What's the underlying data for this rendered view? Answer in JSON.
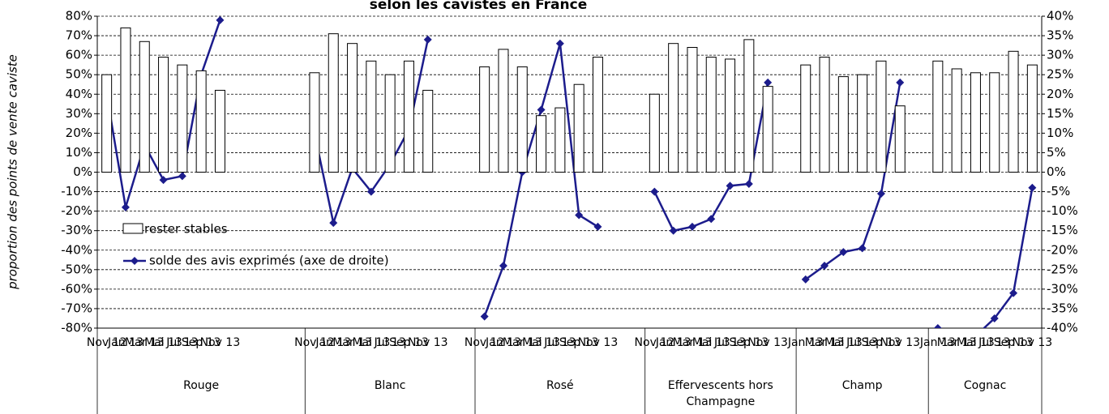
{
  "chart_data": {
    "type": "bar",
    "title": "selon les cavistes en France",
    "y_label": "proportion des points de vente caviste",
    "groups": [
      {
        "name": "Rouge",
        "categories": [
          "Nov 12",
          "Jan 13",
          "Mar 13",
          "Mai 13",
          "Jul 13",
          "Sep 13",
          "Nov 13",
          null,
          null,
          null,
          null
        ]
      },
      {
        "name": "Blanc",
        "categories": [
          "Nov 12",
          "Jan 13",
          "Mar 13",
          "Mai 13",
          "Jul 13",
          "Sep 13",
          "Nov 13",
          null,
          null
        ]
      },
      {
        "name": "Rosé",
        "categories": [
          "Nov 12",
          "Jan 13",
          "Mar 13",
          "Mai 13",
          "Jul 13",
          "Sep 13",
          "Nov 13",
          null,
          null
        ]
      },
      {
        "name": "Effervescents hors Champagne",
        "categories": [
          "Nov 12",
          "Jan 13",
          "Mar 13",
          "Mai 13",
          "Jul 13",
          "Sep 13",
          "Nov 13",
          null
        ]
      },
      {
        "name": "Champ",
        "categories": [
          "Jan 13",
          "Mar 13",
          "Mai 13",
          "Jul 13",
          "Sep 13",
          "Nov 13",
          null
        ]
      },
      {
        "name": "Cognac",
        "categories": [
          "Jan 13",
          "Mar 13",
          "Mai 13",
          "Jul 13",
          "Sep 13",
          "Nov 13"
        ]
      }
    ],
    "series": [
      {
        "name": "rester stables",
        "color": "#ffffff",
        "values": [
          [
            50,
            74,
            67,
            59,
            55,
            52,
            42,
            null,
            null,
            null,
            null
          ],
          [
            51,
            71,
            66,
            57,
            50,
            57,
            42,
            null,
            null
          ],
          [
            54,
            63,
            54,
            29,
            33,
            45,
            59,
            null,
            null
          ],
          [
            40,
            66,
            64,
            59,
            58,
            68,
            44,
            null
          ],
          [
            55,
            59,
            49,
            50,
            57,
            34,
            null
          ],
          [
            57,
            53,
            51,
            51,
            62,
            55
          ]
        ]
      },
      {
        "name": "solde des avis exprimés (axe de droite)",
        "color": "#1c1c8c",
        "axis": "y2",
        "values": [
          [
            20,
            -9,
            7,
            -2,
            -1,
            25,
            39,
            null,
            null,
            null,
            null
          ],
          [
            10,
            -13,
            1,
            -5,
            2,
            11,
            34,
            null,
            null
          ],
          [
            -37,
            -24,
            0,
            16,
            33,
            -11,
            -14,
            null,
            null
          ],
          [
            -5,
            -15,
            -14,
            -12,
            -3.5,
            -3,
            23,
            null
          ],
          [
            -27.5,
            -24,
            -20.5,
            -19.5,
            -5.5,
            23,
            null
          ],
          [
            -40,
            -44,
            -42,
            -37.5,
            -31,
            -4
          ]
        ]
      }
    ],
    "ylim": [
      -80,
      80
    ],
    "yticks": [
      {
        "value": -80,
        "label": "-80%"
      },
      {
        "value": -70,
        "label": "-70%"
      },
      {
        "value": -60,
        "label": "-60%"
      },
      {
        "value": -50,
        "label": "-50%"
      },
      {
        "value": -40,
        "label": "-40%"
      },
      {
        "value": -30,
        "label": "-30%"
      },
      {
        "value": -20,
        "label": "-20%"
      },
      {
        "value": -10,
        "label": "-10%"
      },
      {
        "value": 0,
        "label": "0%"
      },
      {
        "value": 10,
        "label": "10%"
      },
      {
        "value": 20,
        "label": "20%"
      },
      {
        "value": 30,
        "label": "30%"
      },
      {
        "value": 40,
        "label": "40%"
      },
      {
        "value": 50,
        "label": "50%"
      },
      {
        "value": 60,
        "label": "60%"
      },
      {
        "value": 70,
        "label": "70%"
      },
      {
        "value": 80,
        "label": "80%"
      }
    ],
    "y2lim": [
      -40,
      40
    ],
    "y2ticks": [
      {
        "value": -40,
        "label": "-40%"
      },
      {
        "value": -35,
        "label": "-35%"
      },
      {
        "value": -30,
        "label": "-30%"
      },
      {
        "value": -25,
        "label": "-25%"
      },
      {
        "value": -20,
        "label": "-20%"
      },
      {
        "value": -15,
        "label": "-15%"
      },
      {
        "value": -10,
        "label": "-10%"
      },
      {
        "value": -5,
        "label": "-5%"
      },
      {
        "value": 0,
        "label": "0%"
      },
      {
        "value": 5,
        "label": "5%"
      },
      {
        "value": 10,
        "label": "10%"
      },
      {
        "value": 15,
        "label": "15%"
      },
      {
        "value": 20,
        "label": "20%"
      },
      {
        "value": 25,
        "label": "25%"
      },
      {
        "value": 30,
        "label": "30%"
      },
      {
        "value": 35,
        "label": "35%"
      },
      {
        "value": 40,
        "label": "40%"
      }
    ],
    "grid": true
  }
}
